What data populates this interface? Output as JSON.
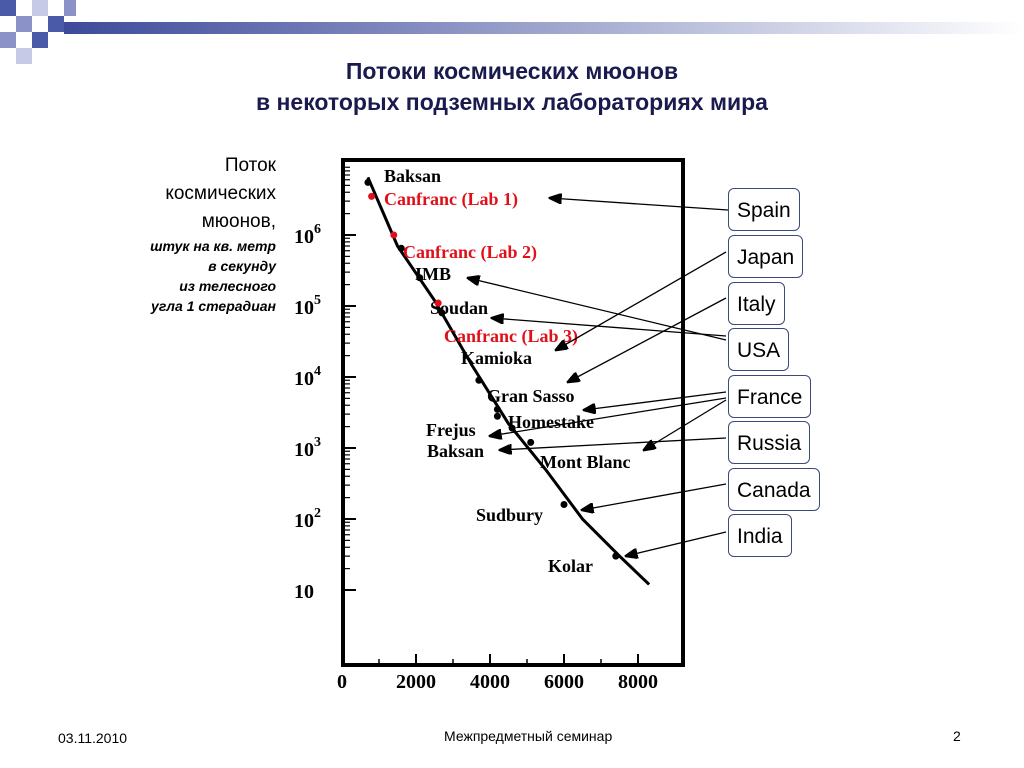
{
  "slide": {
    "title_line1": "Потоки космических мюонов",
    "title_line2": "в некоторых подземных лабораториях мира",
    "ylabel_lines": [
      "Поток",
      "космических",
      "мюонов,"
    ],
    "ylabel_sub_lines": [
      "штук на кв. метр",
      "в секунду",
      "из телесного",
      "угла 1 стерадиан"
    ],
    "footer_date": "03.11.2010",
    "footer_center": "Межпредметный семинар",
    "page_number": "2"
  },
  "countries": [
    {
      "name": "Spain"
    },
    {
      "name": "Japan"
    },
    {
      "name": "Italy"
    },
    {
      "name": "USA"
    },
    {
      "name": "France"
    },
    {
      "name": "Russia"
    },
    {
      "name": "Canada"
    },
    {
      "name": "India"
    }
  ],
  "colors": {
    "title": "#1a1a4e",
    "red_label": "#e0101a",
    "box_border": "#3b4a7a",
    "decor_blue": "#4a5aa8"
  },
  "chart_data": {
    "type": "line",
    "x_ticks": [
      0,
      2000,
      4000,
      6000,
      8000
    ],
    "y_ticks": [
      "10",
      "10^2",
      "10^3",
      "10^4",
      "10^5",
      "10^6"
    ],
    "curve": [
      [
        700,
        6500000
      ],
      [
        1500,
        700000
      ],
      [
        2500,
        120000
      ],
      [
        3500,
        15000
      ],
      [
        4500,
        2200
      ],
      [
        5500,
        500
      ],
      [
        6500,
        100
      ],
      [
        7500,
        30
      ],
      [
        8300,
        12
      ]
    ],
    "labs": [
      {
        "name": "Baksan",
        "x": 700,
        "y": 5500000,
        "red": false
      },
      {
        "name": "Canfranc (Lab 1)",
        "x": 800,
        "y": 3500000,
        "red": true
      },
      {
        "name": "Canfranc (Lab 2)",
        "x": 1400,
        "y": 1000000,
        "red": true
      },
      {
        "name": "IMB",
        "x": 1600,
        "y": 650000,
        "red": false
      },
      {
        "name": "Soudan",
        "x": 2100,
        "y": 250000,
        "red": false
      },
      {
        "name": "Canfranc (Lab 3)",
        "x": 2600,
        "y": 110000,
        "red": true
      },
      {
        "name": "Kamioka",
        "x": 2700,
        "y": 80000,
        "red": false
      },
      {
        "name": "Gran Sasso",
        "x": 3700,
        "y": 9000,
        "red": false
      },
      {
        "name": "Homestake",
        "x": 4200,
        "y": 3500,
        "red": false
      },
      {
        "name": "Frejus",
        "x": 4200,
        "y": 2800,
        "red": false
      },
      {
        "name": "Baksan",
        "x": 4600,
        "y": 1900,
        "red": false
      },
      {
        "name": "Mont Blanc",
        "x": 5100,
        "y": 1200,
        "red": false
      },
      {
        "name": "Sudbury",
        "x": 6000,
        "y": 160,
        "red": false
      },
      {
        "name": "Kolar",
        "x": 7400,
        "y": 30,
        "red": false
      }
    ]
  }
}
